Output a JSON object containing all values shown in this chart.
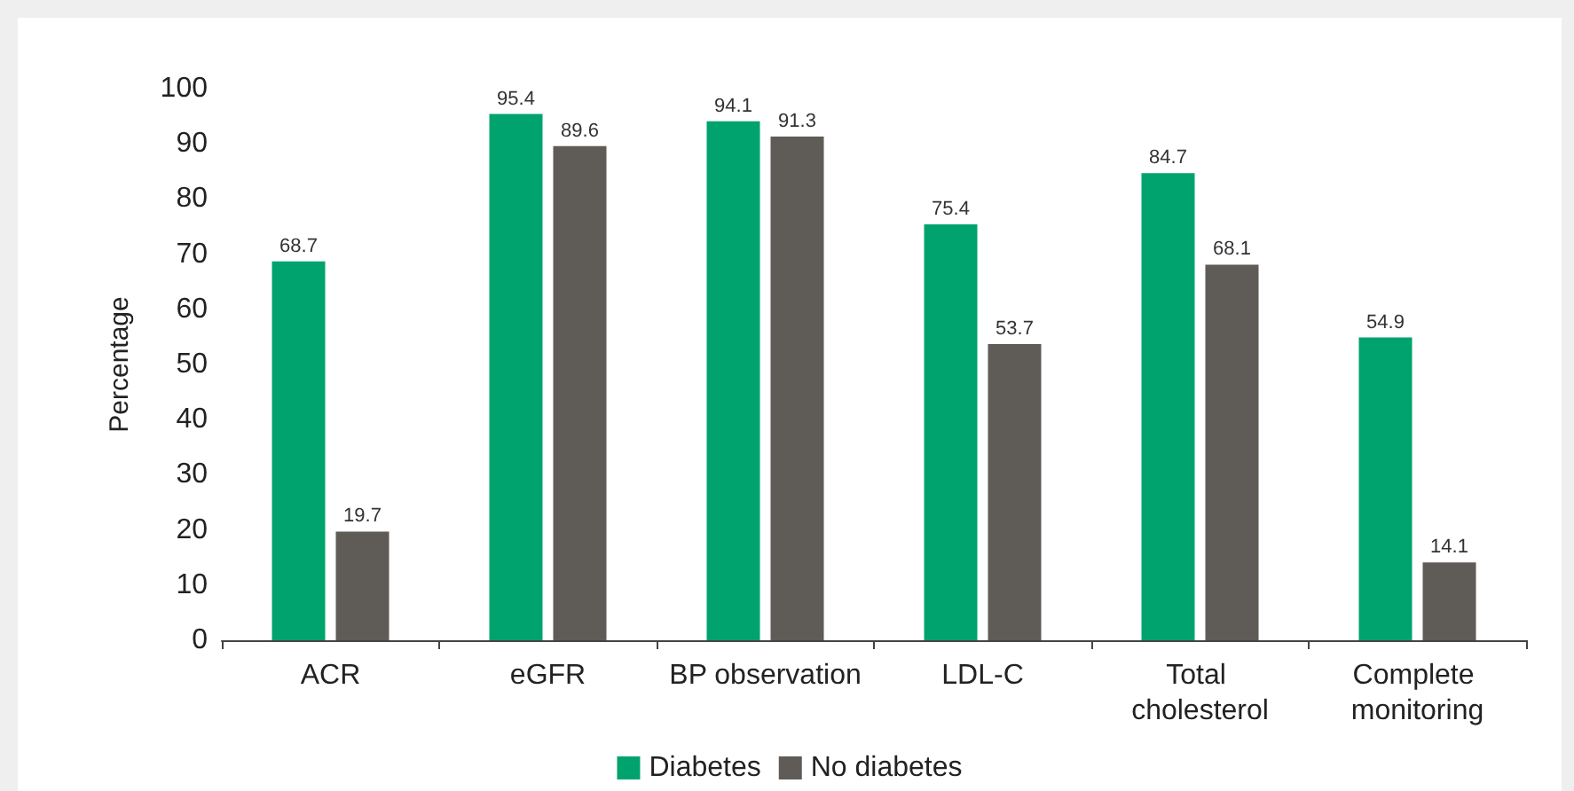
{
  "chart_data": {
    "type": "bar",
    "ylabel": "Percentage",
    "categories": [
      "ACR",
      "eGFR",
      "BP observation",
      "LDL-C",
      "Total cholesterol",
      "Complete monitoring"
    ],
    "series": [
      {
        "name": "Diabetes",
        "color": "#00a36e",
        "values": [
          68.7,
          95.4,
          94.1,
          75.4,
          84.7,
          54.9
        ]
      },
      {
        "name": "No diabetes",
        "color": "#5f5b56",
        "values": [
          19.7,
          89.6,
          91.3,
          53.7,
          68.1,
          14.1
        ]
      }
    ],
    "ylim": [
      0,
      100
    ],
    "yticks": [
      0,
      10,
      20,
      30,
      40,
      50,
      60,
      70,
      80,
      90,
      100
    ],
    "data_labels": true,
    "grid": false,
    "legend": "bottom"
  }
}
